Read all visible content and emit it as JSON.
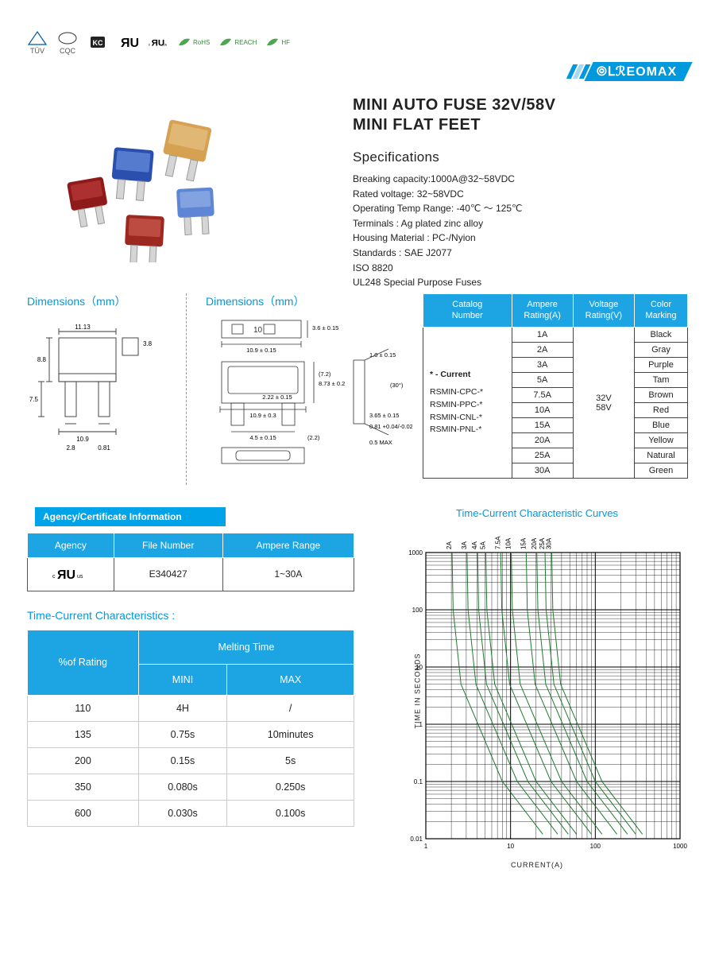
{
  "certs": [
    "TÜV",
    "CQC",
    "KC",
    "UL",
    "cULus",
    "RoHS",
    "REACH",
    "HF"
  ],
  "brand": "⦾ⅬℛEOMAX",
  "title_line1": "MINI AUTO FUSE 32V/58V",
  "title_line2": "MINI FLAT FEET",
  "specs_header": "Specifications",
  "specs": [
    "Breaking capacity:1000A@32~58VDC",
    "Rated voltage: 32~58VDC",
    "Operating Temp Range: -40℃ ～ 125℃",
    "Terminals : Ag plated zinc alloy",
    "Housing Material : PC-/Nyion",
    "Standards : SAE J2077",
    "ISO 8820",
    "UL248 Special Purpose Fuses"
  ],
  "dims_header": "Dimensions（mm）",
  "dims1": {
    "w": "11.13",
    "h1": "8.8",
    "h2": "7.5",
    "base": "10.9",
    "pin_sp": "2.8",
    "pin_w": "0.81",
    "top_blk": "3.8"
  },
  "dims2": {
    "top_w": "10.9 ± 0.15",
    "box_10": "10",
    "box_t": "3.6 ± 0.15",
    "body_w": "10.9 ± 0.3",
    "body_h": "8.73 ± 0.2",
    "body_inner": "(7.2)",
    "slot": "2.22 ± 0.15",
    "pin_len": "4.5 ± 0.15",
    "pin_sp": "(2.2)",
    "side_t": "1.0 ± 0.15",
    "side_h": "3.65 ± 0.15",
    "side_w": "0.81 +0.04/-0.02",
    "side_bot": "0.5 MAX",
    "angle": "(30°)"
  },
  "catalog_headers": [
    "Catalog\nNumber",
    "Ampere\nRating(A)",
    "Voltage\nRating(V)",
    "Color\nMarking"
  ],
  "catalog_catnum_label": "* - Current",
  "catalog_catnums": [
    "RSMIN-CPC-*",
    "RSMIN-PPC-*",
    "RSMIN-CNL-*",
    "RSMIN-PNL-*"
  ],
  "catalog_voltage": "32V\n58V",
  "catalog_rows": [
    {
      "a": "1A",
      "c": "Black"
    },
    {
      "a": "2A",
      "c": "Gray"
    },
    {
      "a": "3A",
      "c": "Purple"
    },
    {
      "a": "5A",
      "c": "Tam"
    },
    {
      "a": "7.5A",
      "c": "Brown"
    },
    {
      "a": "10A",
      "c": "Red"
    },
    {
      "a": "15A",
      "c": "Blue"
    },
    {
      "a": "20A",
      "c": "Yellow"
    },
    {
      "a": "25A",
      "c": "Natural"
    },
    {
      "a": "30A",
      "c": "Green"
    }
  ],
  "agency_bar": "Agency/Certificate Information",
  "agency_headers": [
    "Agency",
    "File   Number",
    "Ampere Range"
  ],
  "agency_row": {
    "agency": "c UL us",
    "file": "E340427",
    "range": "1~30A"
  },
  "tc_header": "Time-Current Characteristics :",
  "tc_col_rating": "%of Rating",
  "tc_col_melting": "Melting Time",
  "tc_sub": [
    "MINI",
    "MAX"
  ],
  "tc_rows": [
    {
      "r": "110",
      "min": "4H",
      "max": "/"
    },
    {
      "r": "135",
      "min": "0.75s",
      "max": "10minutes"
    },
    {
      "r": "200",
      "min": "0.15s",
      "max": "5s"
    },
    {
      "r": "350",
      "min": "0.080s",
      "max": "0.250s"
    },
    {
      "r": "600",
      "min": "0.030s",
      "max": "0.100s"
    }
  ],
  "chart_header": "Time-Current Characteristic Curves",
  "chart": {
    "type": "line-loglog",
    "x_label": "CURRENT(A)",
    "y_label": "TIME IN SECONDS",
    "x_decades": [
      1,
      10,
      100,
      1000
    ],
    "y_decades": [
      0.01,
      0.1,
      1,
      10,
      100,
      1000
    ],
    "series_labels": [
      "2A",
      "3A",
      "4A",
      "5A",
      "7.5A",
      "10A",
      "15A",
      "20A",
      "25A",
      "30A"
    ],
    "series_xstart": [
      2,
      3,
      4,
      5,
      7.5,
      10,
      15,
      20,
      25,
      30
    ],
    "line_color": "#1f7a2e",
    "line_width": 1,
    "grid_color": "#000000",
    "grid_width": 0.8,
    "background_color": "#ffffff",
    "label_fontsize": 8
  },
  "fuse_colors": {
    "body_red": "#8f1a1a",
    "body_blue": "#2a4fae",
    "body_tan": "#d6a252",
    "body_ltblue": "#5f86d4",
    "body_dkred": "#9c2820",
    "pin": "#d5d5d5",
    "pin_edge": "#999"
  }
}
